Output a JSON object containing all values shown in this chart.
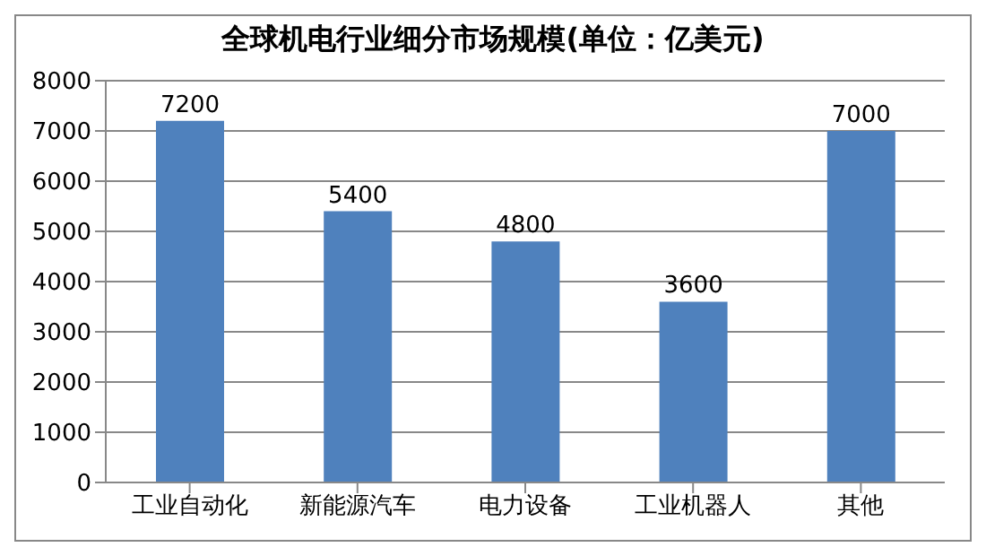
{
  "chart_data": {
    "type": "bar",
    "title": "全球机电行业细分市场规模(单位：亿美元)",
    "categories": [
      "工业自动化",
      "新能源汽车",
      "电力设备",
      "工业机器人",
      "其他"
    ],
    "values": [
      7200,
      5400,
      4800,
      3600,
      7000
    ],
    "color": "#4f81bd",
    "ylim": [
      0,
      8000
    ],
    "yticks": [
      0,
      1000,
      2000,
      3000,
      4000,
      5000,
      6000,
      7000,
      8000
    ],
    "grid": "y",
    "data_labels": true
  }
}
